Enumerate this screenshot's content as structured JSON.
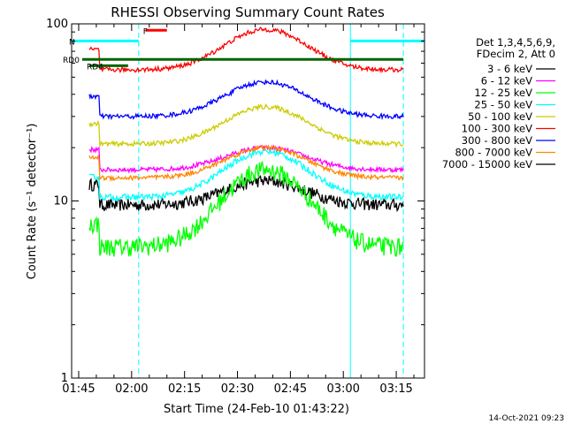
{
  "chart_data": {
    "type": "line",
    "title": "RHESSI Observing Summary Count Rates",
    "xlabel": "Start Time (24-Feb-10 01:43:22)",
    "ylabel": "Count Rate (s⁻¹ detector⁻¹)",
    "y_scale": "log",
    "ylim": [
      1,
      100
    ],
    "xlim": [
      "01:43",
      "03:23"
    ],
    "x_ticks": [
      "01:45",
      "02:00",
      "02:15",
      "02:30",
      "02:45",
      "03:00",
      "03:15"
    ],
    "y_ticks": [
      "1",
      "10",
      "100"
    ],
    "legend_header": [
      "Det 1,3,4,5,6,9,",
      "FDecim 2, Att 0"
    ],
    "series": [
      {
        "name": "3 - 6 keV",
        "color": "#000000",
        "base": 9.5,
        "peak": 13,
        "noise": 0.08,
        "rise": 1.3
      },
      {
        "name": "6 - 12 keV",
        "color": "#ff00ff",
        "base": 15,
        "peak": 20,
        "noise": 0.03,
        "rise": 1.3
      },
      {
        "name": "12 - 25 keV",
        "color": "#00ff00",
        "base": 5.5,
        "peak": 15,
        "noise": 0.12,
        "rise": 1.35
      },
      {
        "name": "25 - 50 keV",
        "color": "#00ffff",
        "base": 10.5,
        "peak": 19,
        "noise": 0.04,
        "rise": 1.3
      },
      {
        "name": "50 - 100 keV",
        "color": "#cccc00",
        "base": 21,
        "peak": 34,
        "noise": 0.03,
        "rise": 1.3
      },
      {
        "name": "100 - 300 keV",
        "color": "#ff0000",
        "base": 55,
        "peak": 93,
        "noise": 0.03,
        "rise": 1.3
      },
      {
        "name": "300 - 800 keV",
        "color": "#0000ff",
        "base": 30,
        "peak": 47,
        "noise": 0.03,
        "rise": 1.3
      },
      {
        "name": "800 - 7000 keV",
        "color": "#ff8800",
        "base": 13.5,
        "peak": 20,
        "noise": 0.03,
        "rise": 1.3
      },
      {
        "name": "7000 - 15000 keV",
        "color": "#000000",
        "base": 0,
        "peak": 0,
        "noise": 0,
        "rise": 1.0
      }
    ],
    "flags": [
      {
        "label": "N",
        "color": "#00ffff"
      },
      {
        "label": "F",
        "color": "#ff0000"
      },
      {
        "label": "RD0",
        "color": "#006400"
      },
      {
        "label": "RD4",
        "color": "#006400"
      }
    ]
  },
  "footer": {
    "timestamp": "14-Oct-2021 09:23"
  }
}
